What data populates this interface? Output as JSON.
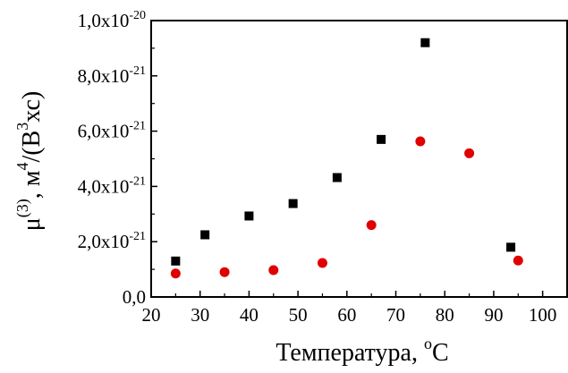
{
  "chart_data": {
    "type": "scatter",
    "title": "",
    "xlabel": {
      "main": "Температура, ",
      "sup": "o",
      "end": "C"
    },
    "ylabel": {
      "mu": "μ",
      "mu_sup": "(3)",
      "mid": ", м",
      "m_sup": "4",
      "paren": "/(В",
      "b_sup": "3",
      "end": "хс)"
    },
    "xlim": [
      20,
      105
    ],
    "ylim": [
      0,
      1e-20
    ],
    "grid": false,
    "x_ticks": [
      {
        "value": 20,
        "label": "20"
      },
      {
        "value": 30,
        "label": "30"
      },
      {
        "value": 40,
        "label": "40"
      },
      {
        "value": 50,
        "label": "50"
      },
      {
        "value": 60,
        "label": "60"
      },
      {
        "value": 70,
        "label": "70"
      },
      {
        "value": 80,
        "label": "80"
      },
      {
        "value": 90,
        "label": "90"
      },
      {
        "value": 100,
        "label": "100"
      }
    ],
    "y_ticks": [
      {
        "value": 0,
        "label": "0,0",
        "exp": ""
      },
      {
        "value": 2e-21,
        "label": "2,0x10",
        "exp": "-21"
      },
      {
        "value": 4e-21,
        "label": "4,0x10",
        "exp": "-21"
      },
      {
        "value": 6e-21,
        "label": "6,0x10",
        "exp": "-21"
      },
      {
        "value": 8e-21,
        "label": "8,0x10",
        "exp": "-21"
      },
      {
        "value": 1e-20,
        "label": "1,0x10",
        "exp": "-20"
      }
    ],
    "series": [
      {
        "marker": "square",
        "color": "#000000",
        "x": [
          25,
          31,
          40,
          49,
          58,
          67,
          76,
          93.5
        ],
        "y": [
          1.3e-21,
          2.25e-21,
          2.93e-21,
          3.38e-21,
          4.32e-21,
          5.7e-21,
          9.2e-21,
          1.8e-21
        ]
      },
      {
        "marker": "circle",
        "color": "#e00000",
        "x": [
          25,
          35,
          45,
          55,
          65,
          75,
          85,
          95
        ],
        "y": [
          8.5e-22,
          9e-22,
          9.7e-22,
          1.23e-21,
          2.6e-21,
          5.63e-21,
          5.2e-21,
          1.32e-21
        ]
      }
    ]
  }
}
